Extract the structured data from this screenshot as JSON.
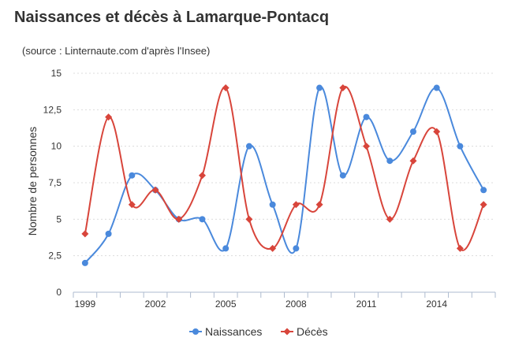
{
  "title": "Naissances et décès à Lamarque-Pontacq",
  "subtitle": "(source : Linternaute.com d'après l'Insee)",
  "chart_data": {
    "type": "line",
    "title": "Naissances et décès à Lamarque-Pontacq",
    "ylabel": "Nombre de personnes",
    "xlabel": "",
    "x": [
      1999,
      2000,
      2001,
      2002,
      2003,
      2004,
      2005,
      2006,
      2007,
      2008,
      2009,
      2010,
      2011,
      2012,
      2013,
      2014,
      2015,
      2016
    ],
    "x_tick_labels": [
      "1999",
      "2002",
      "2005",
      "2008",
      "2011",
      "2014"
    ],
    "x_tick_values": [
      1999,
      2002,
      2005,
      2008,
      2011,
      2014
    ],
    "ylim": [
      0,
      15
    ],
    "y_ticks": [
      0,
      2.5,
      5,
      7.5,
      10,
      12.5,
      15
    ],
    "y_tick_labels": [
      "0",
      "2,5",
      "5",
      "7,5",
      "10",
      "12,5",
      "15"
    ],
    "grid": true,
    "legend_position": "bottom-center",
    "series": [
      {
        "name": "Naissances",
        "color": "#4a89dc",
        "marker": "circle",
        "values": [
          2,
          4,
          8,
          7,
          5,
          5,
          3,
          10,
          6,
          3,
          14,
          8,
          12,
          9,
          11,
          14,
          10,
          7
        ]
      },
      {
        "name": "Décès",
        "color": "#d8453b",
        "marker": "diamond",
        "values": [
          4,
          12,
          6,
          7,
          5,
          8,
          14,
          5,
          3,
          6,
          6,
          14,
          10,
          5,
          9,
          11,
          3,
          6
        ]
      }
    ]
  }
}
